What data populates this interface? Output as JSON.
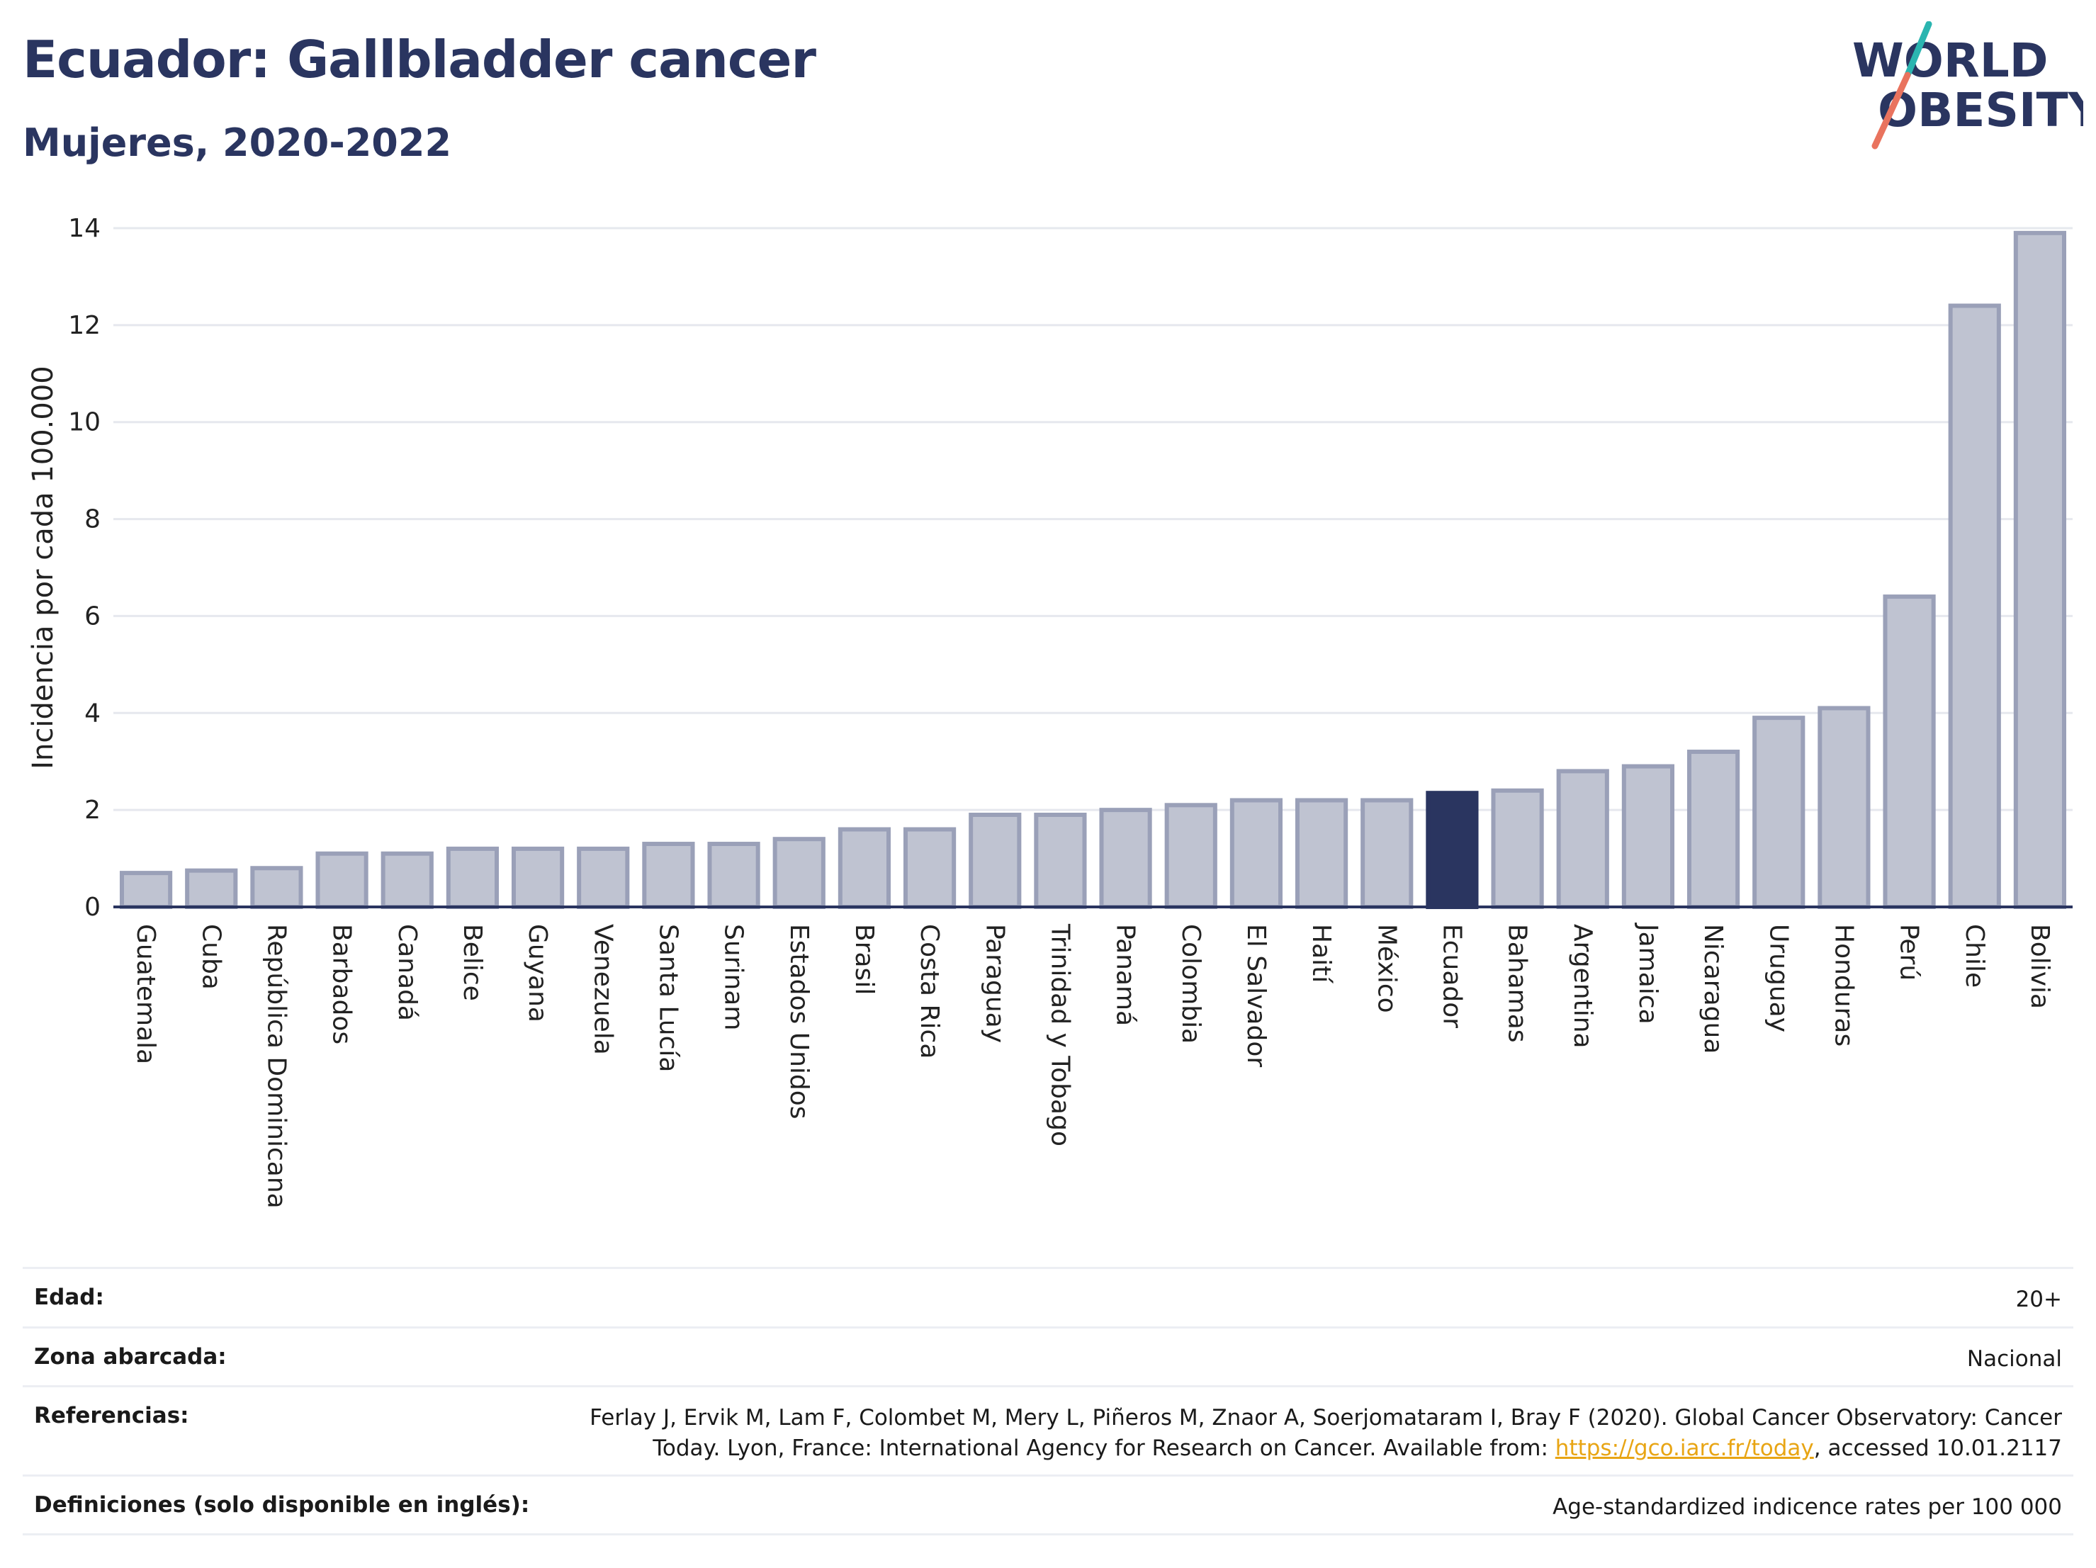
{
  "header": {
    "title": "Ecuador: Gallbladder cancer",
    "subtitle": "Mujeres, 2020-2022"
  },
  "logo": {
    "line1": "WORLD",
    "line2": "OBESITY",
    "icon": "world-obesity-logo",
    "colors": {
      "text": "#2a3560",
      "slash_top": "#2bb5b0",
      "slash_bottom": "#e9735e"
    }
  },
  "chart_data": {
    "type": "bar",
    "title": "Ecuador: Gallbladder cancer",
    "subtitle": "Mujeres, 2020-2022",
    "ylabel": "Incidencia por cada 100.000",
    "xlabel": "",
    "ylim": [
      0,
      14
    ],
    "yticks": [
      0,
      2,
      4,
      6,
      8,
      10,
      12,
      14
    ],
    "grid": true,
    "highlight": "Ecuador",
    "colors": {
      "bar": "#bfc3d1",
      "bar_border": "#9aa0b8",
      "highlight": "#2a3560"
    },
    "categories": [
      "Guatemala",
      "Cuba",
      "República Dominicana",
      "Barbados",
      "Canadá",
      "Belice",
      "Guyana",
      "Venezuela",
      "Santa Lucía",
      "Surinam",
      "Estados Unidos",
      "Brasil",
      "Costa Rica",
      "Paraguay",
      "Trinidad y Tobago",
      "Panamá",
      "Colombia",
      "El Salvador",
      "Haití",
      "México",
      "Ecuador",
      "Bahamas",
      "Argentina",
      "Jamaica",
      "Nicaragua",
      "Uruguay",
      "Honduras",
      "Perú",
      "Chile",
      "Bolivia"
    ],
    "values": [
      0.7,
      0.75,
      0.8,
      1.1,
      1.1,
      1.2,
      1.2,
      1.2,
      1.3,
      1.3,
      1.4,
      1.6,
      1.6,
      1.9,
      1.9,
      2.0,
      2.1,
      2.2,
      2.2,
      2.2,
      2.35,
      2.4,
      2.8,
      2.9,
      3.2,
      3.9,
      4.1,
      6.4,
      12.4,
      13.9
    ]
  },
  "info": {
    "rows": [
      {
        "label": "Edad:",
        "value": "20+"
      },
      {
        "label": "Zona abarcada:",
        "value": "Nacional"
      },
      {
        "label": "Referencias:",
        "value_line1": "Ferlay J, Ervik M, Lam F, Colombet M, Mery L, Piñeros M, Znaor A, Soerjomataram I, Bray F (2020). Global Cancer Observatory: Cancer",
        "value_line2_prefix": "Today. Lyon, France: International Agency for Research on Cancer. Available from: ",
        "link_text": "https://gco.iarc.fr/today",
        "value_line2_suffix": ", accessed 10.01.2117"
      },
      {
        "label": "Definiciones (solo disponible en inglés):",
        "value": "Age-standardized indicence rates per 100 000"
      }
    ]
  }
}
